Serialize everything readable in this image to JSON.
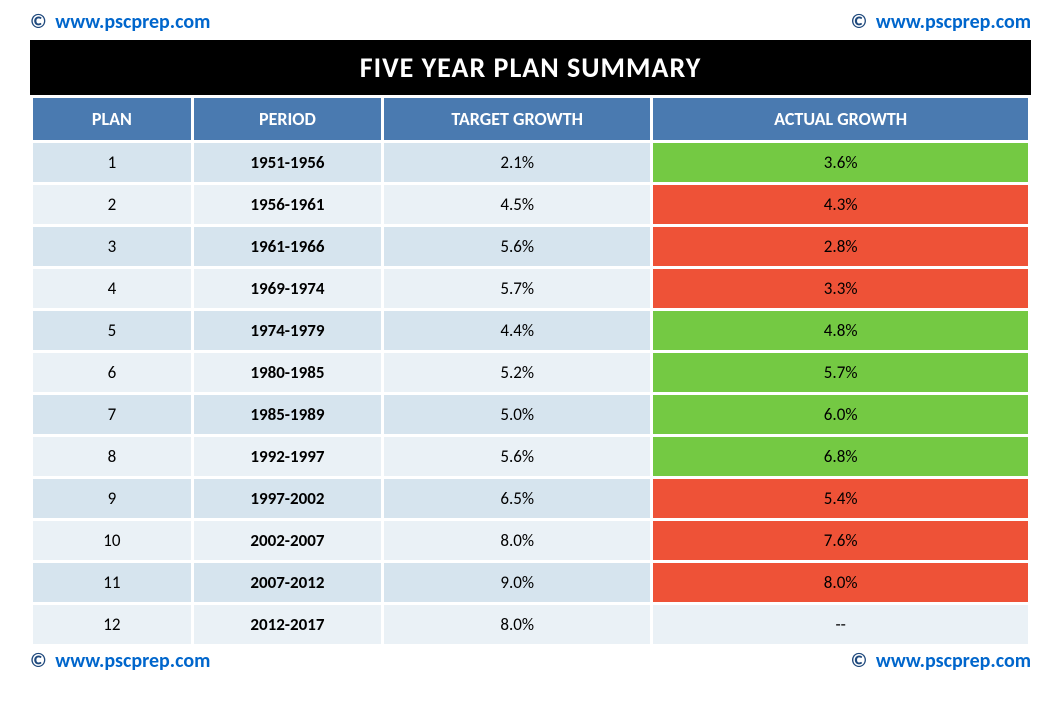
{
  "watermark": {
    "copyright": "©",
    "url": "www.pscprep.com"
  },
  "title": "FIVE YEAR PLAN SUMMARY",
  "colors": {
    "header_bg": "#4a7ab0",
    "header_fg": "#ffffff",
    "title_bg": "#000000",
    "title_fg": "#ffffff",
    "row_odd": "#d6e4ee",
    "row_even": "#eaf1f6",
    "success": "#74c943",
    "fail": "#ee5237",
    "link": "#0066cc"
  },
  "table": {
    "columns": [
      "PLAN",
      "PERIOD",
      "TARGET GROWTH",
      "ACTUAL GROWTH"
    ],
    "rows": [
      {
        "plan": "1",
        "period": "1951-1956",
        "target": "2.1%",
        "actual": "3.6%",
        "status": "green"
      },
      {
        "plan": "2",
        "period": "1956-1961",
        "target": "4.5%",
        "actual": "4.3%",
        "status": "red"
      },
      {
        "plan": "3",
        "period": "1961-1966",
        "target": "5.6%",
        "actual": "2.8%",
        "status": "red"
      },
      {
        "plan": "4",
        "period": "1969-1974",
        "target": "5.7%",
        "actual": "3.3%",
        "status": "red"
      },
      {
        "plan": "5",
        "period": "1974-1979",
        "target": "4.4%",
        "actual": "4.8%",
        "status": "green"
      },
      {
        "plan": "6",
        "period": "1980-1985",
        "target": "5.2%",
        "actual": "5.7%",
        "status": "green"
      },
      {
        "plan": "7",
        "period": "1985-1989",
        "target": "5.0%",
        "actual": "6.0%",
        "status": "green"
      },
      {
        "plan": "8",
        "period": "1992-1997",
        "target": "5.6%",
        "actual": "6.8%",
        "status": "green"
      },
      {
        "plan": "9",
        "period": "1997-2002",
        "target": "6.5%",
        "actual": "5.4%",
        "status": "red"
      },
      {
        "plan": "10",
        "period": "2002-2007",
        "target": "8.0%",
        "actual": "7.6%",
        "status": "red"
      },
      {
        "plan": "11",
        "period": "2007-2012",
        "target": "9.0%",
        "actual": "8.0%",
        "status": "red"
      },
      {
        "plan": "12",
        "period": "2012-2017",
        "target": "8.0%",
        "actual": "--",
        "status": "none"
      }
    ]
  }
}
